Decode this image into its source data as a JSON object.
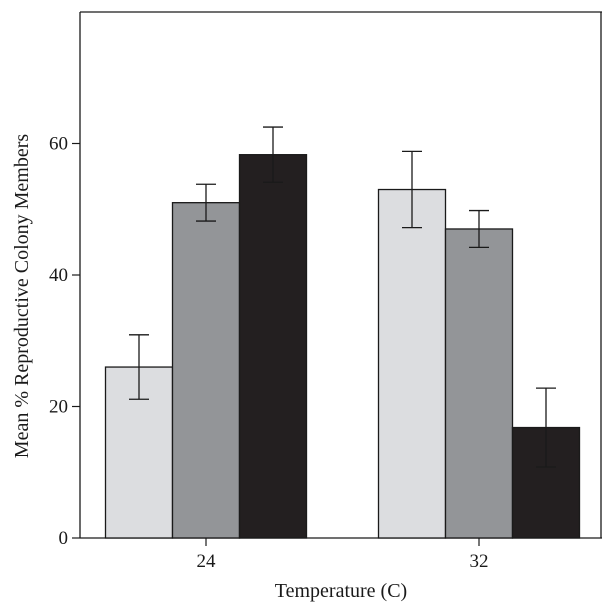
{
  "chart_data": {
    "type": "bar",
    "title": "",
    "xlabel": "Temperature (C)",
    "ylabel": "Mean % Reproductive Colony Members",
    "categories": [
      "24",
      "32"
    ],
    "ylim": [
      0,
      80
    ],
    "yticks": [
      0,
      20,
      40,
      60
    ],
    "grid": false,
    "legend": "none",
    "series": [
      {
        "color": "#dcdde0",
        "values": [
          26,
          53
        ],
        "errors": [
          4.9,
          5.8
        ]
      },
      {
        "color": "#939598",
        "values": [
          51,
          47
        ],
        "errors": [
          2.8,
          2.8
        ]
      },
      {
        "color": "#231f20",
        "values": [
          58.3,
          16.8
        ],
        "errors": [
          4.2,
          6.0
        ]
      }
    ]
  }
}
